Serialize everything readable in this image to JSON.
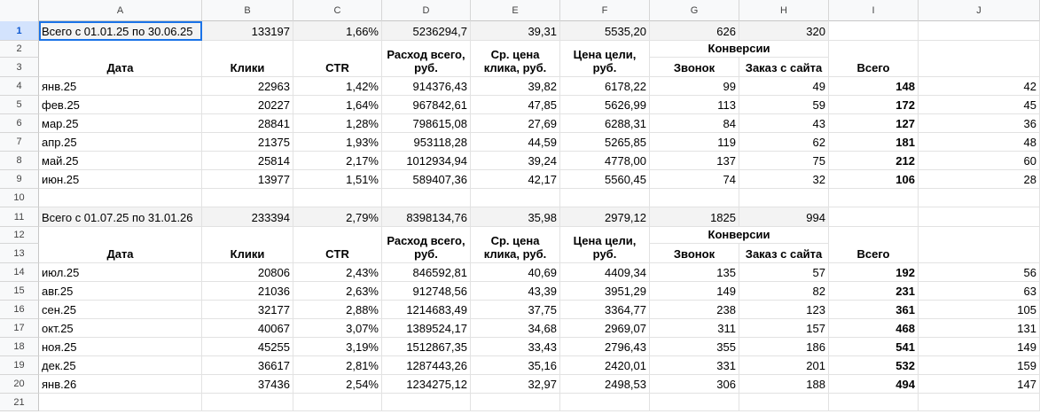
{
  "columns": [
    "A",
    "B",
    "C",
    "D",
    "E",
    "F",
    "G",
    "H",
    "I",
    "J"
  ],
  "rownums": [
    "1",
    "2",
    "3",
    "4",
    "5",
    "6",
    "7",
    "8",
    "9",
    "10",
    "11",
    "12",
    "13",
    "14",
    "15",
    "16",
    "17",
    "18",
    "19",
    "20",
    "21"
  ],
  "summary1": {
    "label": "Всего с 01.01.25 по 30.06.25",
    "clicks": "133197",
    "ctr": "1,66%",
    "spend": "5236294,7",
    "cpc": "39,31",
    "cpa": "5535,20",
    "calls": "626",
    "orders": "320"
  },
  "summary2": {
    "label": "Всего с 01.07.25 по 31.01.26",
    "clicks": "233394",
    "ctr": "2,79%",
    "spend": "8398134,76",
    "cpc": "35,98",
    "cpa": "2979,12",
    "calls": "1825",
    "orders": "994"
  },
  "headers": {
    "date": "Дата",
    "clicks": "Клики",
    "ctr": "CTR",
    "spend": "Расход всего, руб.",
    "cpc": "Ср. цена клика, руб.",
    "cpa": "Цена цели, руб.",
    "conversions": "Конверсии",
    "call": "Звонок",
    "order": "Заказ с сайта",
    "total": "Всего"
  },
  "table1": [
    {
      "date": "янв.25",
      "clicks": "22963",
      "ctr": "1,42%",
      "spend": "914376,43",
      "cpc": "39,82",
      "cpa": "6178,22",
      "calls": "99",
      "orders": "49",
      "total": "148",
      "j": "42"
    },
    {
      "date": "фев.25",
      "clicks": "20227",
      "ctr": "1,64%",
      "spend": "967842,61",
      "cpc": "47,85",
      "cpa": "5626,99",
      "calls": "113",
      "orders": "59",
      "total": "172",
      "j": "45"
    },
    {
      "date": "мар.25",
      "clicks": "28841",
      "ctr": "1,28%",
      "spend": "798615,08",
      "cpc": "27,69",
      "cpa": "6288,31",
      "calls": "84",
      "orders": "43",
      "total": "127",
      "j": "36"
    },
    {
      "date": "апр.25",
      "clicks": "21375",
      "ctr": "1,93%",
      "spend": "953118,28",
      "cpc": "44,59",
      "cpa": "5265,85",
      "calls": "119",
      "orders": "62",
      "total": "181",
      "j": "48"
    },
    {
      "date": "май.25",
      "clicks": "25814",
      "ctr": "2,17%",
      "spend": "1012934,94",
      "cpc": "39,24",
      "cpa": "4778,00",
      "calls": "137",
      "orders": "75",
      "total": "212",
      "j": "60"
    },
    {
      "date": "июн.25",
      "clicks": "13977",
      "ctr": "1,51%",
      "spend": "589407,36",
      "cpc": "42,17",
      "cpa": "5560,45",
      "calls": "74",
      "orders": "32",
      "total": "106",
      "j": "28"
    }
  ],
  "table2": [
    {
      "date": "июл.25",
      "clicks": "20806",
      "ctr": "2,43%",
      "spend": "846592,81",
      "cpc": "40,69",
      "cpa": "4409,34",
      "calls": "135",
      "orders": "57",
      "total": "192",
      "j": "56"
    },
    {
      "date": "авг.25",
      "clicks": "21036",
      "ctr": "2,63%",
      "spend": "912748,56",
      "cpc": "43,39",
      "cpa": "3951,29",
      "calls": "149",
      "orders": "82",
      "total": "231",
      "j": "63"
    },
    {
      "date": "сен.25",
      "clicks": "32177",
      "ctr": "2,88%",
      "spend": "1214683,49",
      "cpc": "37,75",
      "cpa": "3364,77",
      "calls": "238",
      "orders": "123",
      "total": "361",
      "j": "105"
    },
    {
      "date": "окт.25",
      "clicks": "40067",
      "ctr": "3,07%",
      "spend": "1389524,17",
      "cpc": "34,68",
      "cpa": "2969,07",
      "calls": "311",
      "orders": "157",
      "total": "468",
      "j": "131"
    },
    {
      "date": "ноя.25",
      "clicks": "45255",
      "ctr": "3,19%",
      "spend": "1512867,35",
      "cpc": "33,43",
      "cpa": "2796,43",
      "calls": "355",
      "orders": "186",
      "total": "541",
      "j": "149"
    },
    {
      "date": "дек.25",
      "clicks": "36617",
      "ctr": "2,81%",
      "spend": "1287443,26",
      "cpc": "35,16",
      "cpa": "2420,01",
      "calls": "331",
      "orders": "201",
      "total": "532",
      "j": "159"
    },
    {
      "date": "янв.26",
      "clicks": "37436",
      "ctr": "2,54%",
      "spend": "1234275,12",
      "cpc": "32,97",
      "cpa": "2498,53",
      "calls": "306",
      "orders": "188",
      "total": "494",
      "j": "147"
    }
  ]
}
